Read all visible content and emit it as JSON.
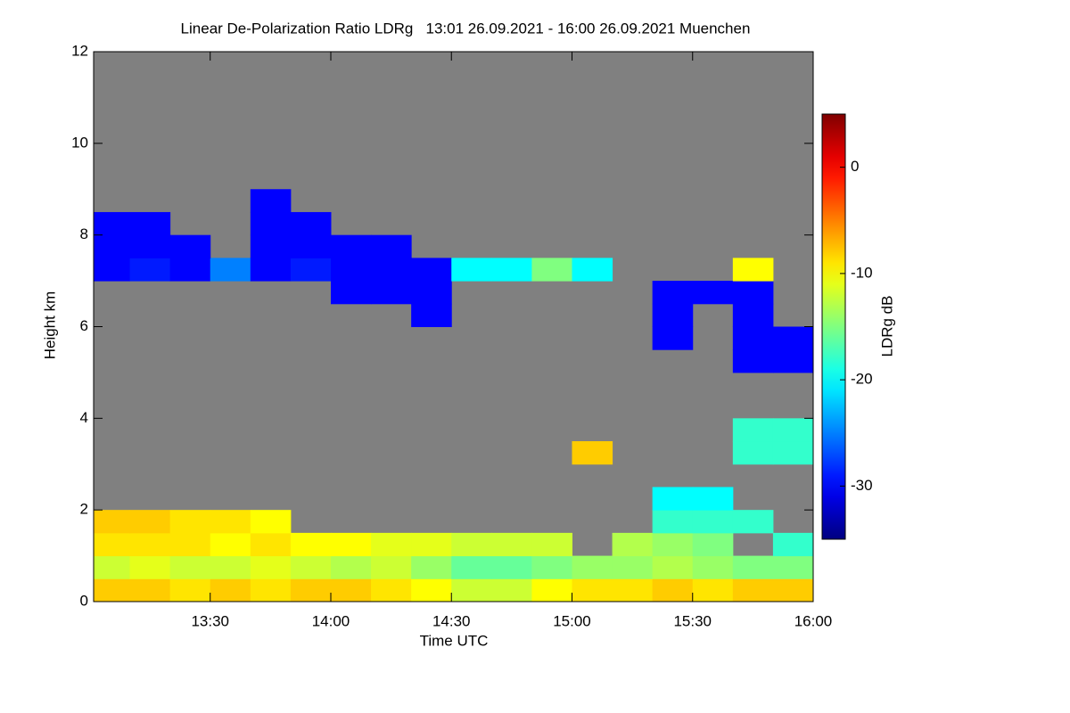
{
  "chart_data": {
    "type": "heatmap",
    "title": "Linear De-Polarization Ratio LDRg   13:01 26.09.2021 - 16:00 26.09.2021 Muenchen",
    "xlabel": "Time UTC",
    "ylabel": "Height km",
    "colorbar_label": "LDRg dB",
    "colormap": "jet",
    "missing_color": "#808080",
    "xlim": [
      13.0167,
      16.0
    ],
    "xticks": [
      {
        "value": 13.5,
        "label": "13:30"
      },
      {
        "value": 14.0,
        "label": "14:00"
      },
      {
        "value": 14.5,
        "label": "14:30"
      },
      {
        "value": 15.0,
        "label": "15:00"
      },
      {
        "value": 15.5,
        "label": "15:30"
      },
      {
        "value": 16.0,
        "label": "16:00"
      }
    ],
    "ylim": [
      0,
      12
    ],
    "yticks": [
      0,
      2,
      4,
      6,
      8,
      10,
      12
    ],
    "clim": [
      -35,
      5
    ],
    "cticks": [
      0,
      -10,
      -20,
      -30
    ],
    "x_bins": [
      13.0167,
      13.1667,
      13.3333,
      13.5,
      13.6667,
      13.8333,
      14.0,
      14.1667,
      14.3333,
      14.5,
      14.6667,
      14.8333,
      15.0,
      15.1667,
      15.3333,
      15.5,
      15.6667,
      15.8333,
      16.0
    ],
    "y_bins": [
      0,
      0.5,
      1,
      1.5,
      2,
      2.5,
      3,
      3.5,
      4,
      4.5,
      5,
      5.5,
      6,
      6.5,
      7,
      7.5,
      8,
      8.5,
      9
    ],
    "z": [
      [
        -8,
        -8,
        -9,
        -8,
        -9,
        -8,
        -8,
        -9,
        -10,
        -12,
        -12,
        -10,
        -9,
        -9,
        -8,
        -9,
        -8,
        -8
      ],
      [
        -12,
        -11,
        -12,
        -12,
        -11,
        -12,
        -13,
        -12,
        -14,
        -16,
        -16,
        -15,
        -14,
        -14,
        -13,
        -14,
        -15,
        -15
      ],
      [
        -9,
        -9,
        -9,
        -10,
        -9,
        -10,
        -10,
        -11,
        -11,
        -12,
        -12,
        -12,
        null,
        -13,
        -14,
        -15,
        null,
        -18
      ],
      [
        -8,
        -8,
        -9,
        -9,
        -10,
        null,
        null,
        null,
        null,
        null,
        null,
        null,
        null,
        null,
        -18,
        -18,
        -18,
        null
      ],
      [
        null,
        null,
        null,
        null,
        null,
        null,
        null,
        null,
        null,
        null,
        null,
        null,
        null,
        null,
        -20,
        -20,
        null,
        null
      ],
      [
        null,
        null,
        null,
        null,
        null,
        null,
        null,
        null,
        null,
        null,
        null,
        null,
        null,
        null,
        null,
        null,
        null,
        null
      ],
      [
        null,
        null,
        null,
        null,
        null,
        null,
        null,
        null,
        null,
        null,
        null,
        null,
        -8,
        null,
        null,
        null,
        -18,
        -18
      ],
      [
        null,
        null,
        null,
        null,
        null,
        null,
        null,
        null,
        null,
        null,
        null,
        null,
        null,
        null,
        null,
        null,
        -18,
        -18
      ],
      [
        null,
        null,
        null,
        null,
        null,
        null,
        null,
        null,
        null,
        null,
        null,
        null,
        null,
        null,
        null,
        null,
        null,
        null
      ],
      [
        null,
        null,
        null,
        null,
        null,
        null,
        null,
        null,
        null,
        null,
        null,
        null,
        null,
        null,
        null,
        null,
        null,
        null
      ],
      [
        null,
        null,
        null,
        null,
        null,
        null,
        null,
        null,
        null,
        null,
        null,
        null,
        null,
        null,
        null,
        null,
        -30,
        -30
      ],
      [
        null,
        null,
        null,
        null,
        null,
        null,
        null,
        null,
        null,
        null,
        null,
        null,
        null,
        null,
        -30,
        null,
        -30,
        -30
      ],
      [
        null,
        null,
        null,
        null,
        null,
        null,
        null,
        null,
        -30,
        null,
        null,
        null,
        null,
        null,
        -30,
        null,
        -30,
        null
      ],
      [
        null,
        null,
        null,
        null,
        null,
        null,
        -30,
        -30,
        -30,
        null,
        null,
        null,
        null,
        null,
        -30,
        -30,
        -30,
        null
      ],
      [
        -30,
        -29,
        -30,
        -25,
        -30,
        -29,
        -30,
        -30,
        -30,
        -20,
        -20,
        -15,
        -20,
        null,
        null,
        null,
        -10,
        null
      ],
      [
        -30,
        -30,
        -30,
        null,
        -30,
        -30,
        -30,
        -30,
        null,
        null,
        null,
        null,
        null,
        null,
        null,
        null,
        null,
        null
      ],
      [
        -30,
        -30,
        null,
        null,
        -30,
        -30,
        null,
        null,
        null,
        null,
        null,
        null,
        null,
        null,
        null,
        null,
        null,
        null
      ],
      [
        null,
        null,
        null,
        null,
        -30,
        null,
        null,
        null,
        null,
        null,
        null,
        null,
        null,
        null,
        null,
        null,
        null,
        null
      ]
    ]
  }
}
